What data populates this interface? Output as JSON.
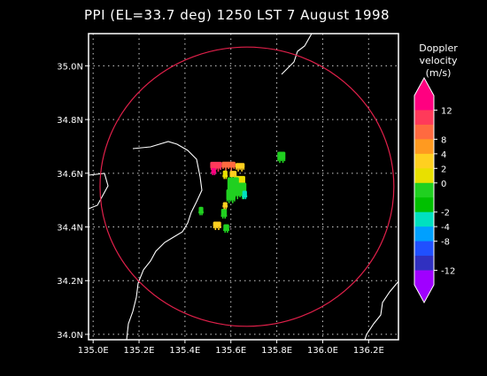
{
  "chart_data": {
    "type": "scatter",
    "title": "PPI (EL=33.7 deg)  1250 LST 7 August 1998",
    "x_ticks": [
      "135.0E",
      "135.2E",
      "135.4E",
      "135.6E",
      "135.8E",
      "136.0E",
      "136.2E"
    ],
    "y_ticks": [
      "34.0N",
      "34.2N",
      "34.4N",
      "34.6N",
      "34.8N",
      "35.0N"
    ],
    "xlim": [
      134.98,
      136.33
    ],
    "ylim": [
      33.98,
      35.12
    ],
    "grid": true,
    "range_ring": {
      "center_lon": 135.67,
      "center_lat": 34.55,
      "radius_lon": 0.64,
      "radius_lat": 0.52,
      "color": "#e0204a"
    },
    "colorbar": {
      "title_lines": [
        "Doppler",
        "velocity",
        "(m/s)"
      ],
      "labels": [
        "12",
        "8",
        "4",
        "2",
        "0",
        "-2",
        "-4",
        "-8",
        "-12"
      ],
      "colors": [
        "#ff0080",
        "#ff3a5a",
        "#ff6a40",
        "#ff9a20",
        "#ffd020",
        "#e8e000",
        "#20d020",
        "#00c000",
        "#00e0c0",
        "#00a0ff",
        "#2050ff",
        "#3030c0",
        "#a000ff"
      ]
    },
    "echo_cells": [
      {
        "lon": 135.535,
        "lat": 34.63,
        "value": 10,
        "w": 0.05,
        "h": 0.025
      },
      {
        "lon": 135.59,
        "lat": 34.632,
        "value": 6,
        "w": 0.06,
        "h": 0.022
      },
      {
        "lon": 135.64,
        "lat": 34.628,
        "value": 3,
        "w": 0.04,
        "h": 0.02
      },
      {
        "lon": 135.525,
        "lat": 34.612,
        "value": 12,
        "w": 0.02,
        "h": 0.015
      },
      {
        "lon": 135.61,
        "lat": 34.6,
        "value": 2,
        "w": 0.03,
        "h": 0.018
      },
      {
        "lon": 135.64,
        "lat": 34.575,
        "value": 0,
        "w": 0.045,
        "h": 0.03
      },
      {
        "lon": 135.61,
        "lat": 34.56,
        "value": -2,
        "w": 0.05,
        "h": 0.05
      },
      {
        "lon": 135.64,
        "lat": 34.54,
        "value": -2,
        "w": 0.055,
        "h": 0.05
      },
      {
        "lon": 135.6,
        "lat": 34.52,
        "value": -1,
        "w": 0.04,
        "h": 0.04
      },
      {
        "lon": 135.66,
        "lat": 34.525,
        "value": -4,
        "w": 0.02,
        "h": 0.02
      },
      {
        "lon": 135.575,
        "lat": 34.6,
        "value": 1,
        "w": 0.02,
        "h": 0.02
      },
      {
        "lon": 135.82,
        "lat": 34.665,
        "value": -2,
        "w": 0.035,
        "h": 0.03
      },
      {
        "lon": 135.47,
        "lat": 34.465,
        "value": -2,
        "w": 0.02,
        "h": 0.02
      },
      {
        "lon": 135.57,
        "lat": 34.455,
        "value": -2,
        "w": 0.025,
        "h": 0.025
      },
      {
        "lon": 135.575,
        "lat": 34.485,
        "value": 2,
        "w": 0.02,
        "h": 0.015
      },
      {
        "lon": 135.54,
        "lat": 34.41,
        "value": 2,
        "w": 0.035,
        "h": 0.02
      },
      {
        "lon": 135.58,
        "lat": 34.4,
        "value": -2,
        "w": 0.025,
        "h": 0.02
      }
    ]
  }
}
